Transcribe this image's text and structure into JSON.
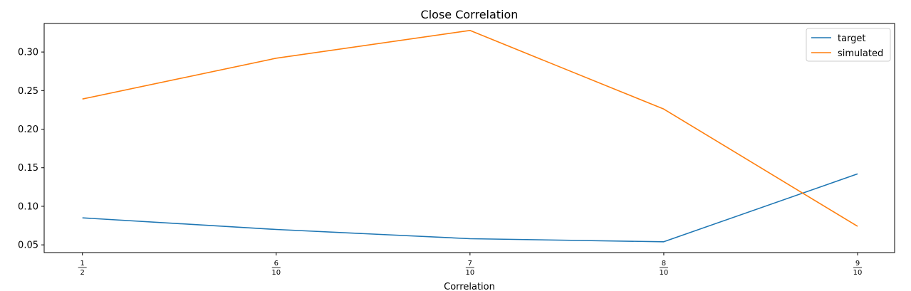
{
  "chart_data": {
    "type": "line",
    "title": "Close Correlation",
    "xlabel": "Correlation",
    "ylabel": "",
    "x": [
      0.5,
      0.6,
      0.7,
      0.8,
      0.9
    ],
    "x_tick_labels": [
      {
        "num": "1",
        "den": "2"
      },
      {
        "num": "6",
        "den": "10"
      },
      {
        "num": "7",
        "den": "10"
      },
      {
        "num": "8",
        "den": "10"
      },
      {
        "num": "9",
        "den": "10"
      }
    ],
    "yticks": [
      0.05,
      0.1,
      0.15,
      0.2,
      0.25,
      0.3
    ],
    "ytick_labels": [
      "0.05",
      "0.10",
      "0.15",
      "0.20",
      "0.25",
      "0.30"
    ],
    "ylim": [
      0.04,
      0.337
    ],
    "grid": false,
    "legend_position": "top-right",
    "series": [
      {
        "name": "target",
        "color": "#1f77b4",
        "values": [
          0.085,
          0.07,
          0.058,
          0.054,
          0.142
        ]
      },
      {
        "name": "simulated",
        "color": "#ff7f0e",
        "values": [
          0.239,
          0.292,
          0.328,
          0.226,
          0.074
        ]
      }
    ]
  }
}
